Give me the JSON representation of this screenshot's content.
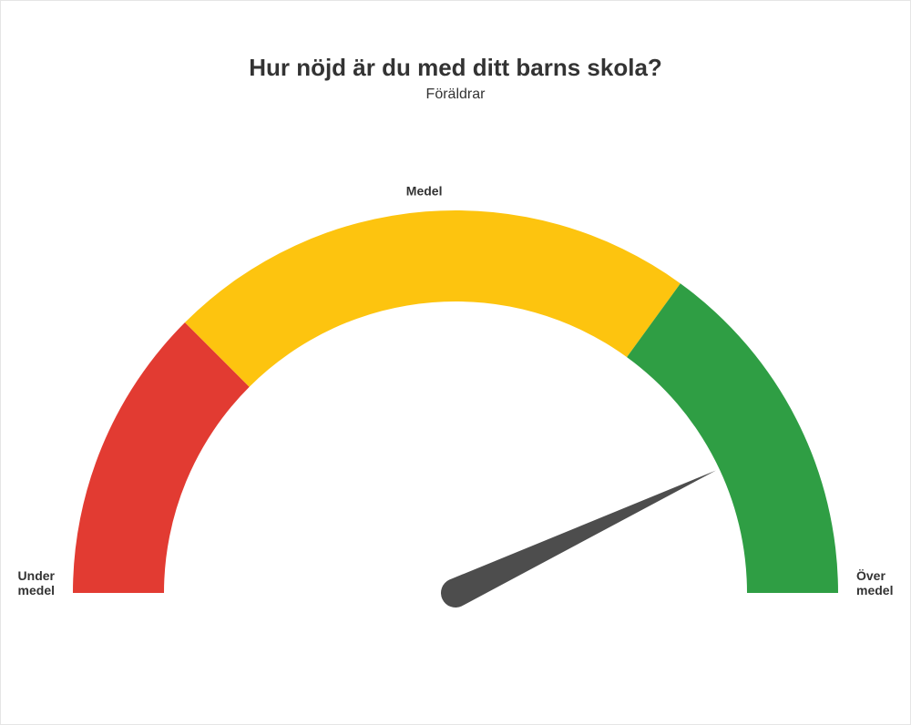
{
  "title": "Hur nöjd är du med ditt barns skola?",
  "subtitle": "Föräldrar",
  "gauge": {
    "type": "gauge",
    "min": 0,
    "max": 100,
    "value": 86,
    "needle_color": "#4d4d4d",
    "background_color": "#ffffff",
    "outer_radius": 420,
    "inner_radius": 320,
    "segments": [
      {
        "from": 0,
        "to": 25,
        "color": "#e23b32",
        "label": "Under\nmedel",
        "label_pos": "start"
      },
      {
        "from": 25,
        "to": 70,
        "color": "#fdc40f",
        "label": "Medel",
        "label_pos": "mid"
      },
      {
        "from": 70,
        "to": 100,
        "color": "#2f9e44",
        "label": "Över\nmedel",
        "label_pos": "end"
      }
    ],
    "label_fontsize": 14,
    "label_fontweight": 700,
    "title_fontsize": 26,
    "title_fontweight": 700,
    "subtitle_fontsize": 16
  }
}
